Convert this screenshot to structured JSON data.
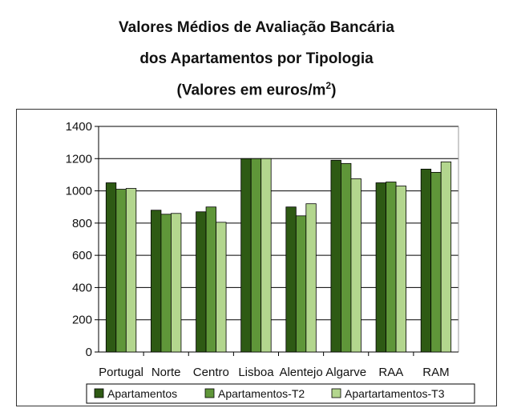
{
  "title": {
    "line1": "Valores Médios de Avaliação Bancária",
    "line2": "dos Apartamentos por Tipologia",
    "line3_main": "(Valores em euros/m",
    "line3_sup": "2",
    "line3_end": ")"
  },
  "colors": {
    "Apartamentos": "#2e5a14",
    "Apartamentos-T2": "#5f9639",
    "Apartartamentos-T3": "#b3d68e"
  },
  "chart_data": {
    "type": "bar",
    "title": "Valores Médios de Avaliação Bancária dos Apartamentos por Tipologia (Valores em euros/m2)",
    "categories": [
      "Portugal",
      "Norte",
      "Centro",
      "Lisboa",
      "Alentejo",
      "Algarve",
      "RAA",
      "RAM"
    ],
    "series": [
      {
        "name": "Apartamentos",
        "values": [
          1050,
          880,
          870,
          1200,
          900,
          1190,
          1050,
          1135
        ]
      },
      {
        "name": "Apartamentos-T2",
        "values": [
          1010,
          855,
          900,
          1200,
          845,
          1170,
          1055,
          1115
        ]
      },
      {
        "name": "Apartartamentos-T3",
        "values": [
          1015,
          860,
          805,
          1200,
          920,
          1075,
          1030,
          1180
        ]
      }
    ],
    "yticks": [
      0,
      200,
      400,
      600,
      800,
      1000,
      1200,
      1400
    ],
    "ylim": [
      0,
      1400
    ],
    "grid": "horizontal",
    "legend": "bottom"
  }
}
